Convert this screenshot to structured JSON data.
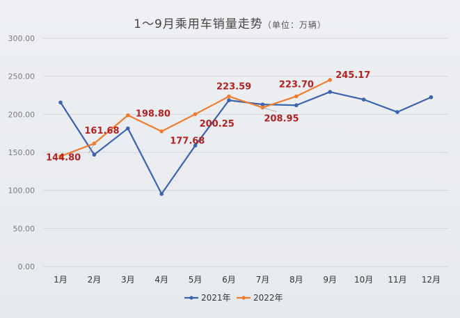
{
  "title": {
    "main": "1～9月乘用车销量走势",
    "unit": "（单位：万辆）"
  },
  "colors": {
    "series_2021": "#3a63b0",
    "series_2022": "#ee7d2e",
    "label": "#b22222",
    "grid": "#d3d6db"
  },
  "chart_data": {
    "type": "line",
    "title": "1～9月乘用车销量走势（单位：万辆）",
    "categories": [
      "1月",
      "2月",
      "3月",
      "4月",
      "5月",
      "6月",
      "7月",
      "8月",
      "9月",
      "10月",
      "11月",
      "12月"
    ],
    "ylim": [
      0,
      300
    ],
    "yticks": [
      "0.00",
      "50.00",
      "100.00",
      "150.00",
      "200.00",
      "250.00",
      "300.00"
    ],
    "grid": true,
    "legend_position": "bottom",
    "series": [
      {
        "name": "2021年",
        "color": "#3a63b0",
        "values": [
          215.6,
          147.0,
          181.5,
          95.5,
          159.0,
          218.5,
          213.0,
          212.0,
          229.5,
          219.5,
          203.0,
          222.5
        ],
        "labels": [
          "",
          "",
          "",
          "",
          "",
          "",
          "",
          "",
          "",
          "",
          "",
          ""
        ]
      },
      {
        "name": "2022年",
        "color": "#ee7d2e",
        "values": [
          144.8,
          161.68,
          198.8,
          177.68,
          200.25,
          223.59,
          208.95,
          223.7,
          245.17,
          null,
          null,
          null
        ],
        "labels": [
          "144.80",
          "161.68",
          "198.80",
          "177.68",
          "200.25",
          "223.59",
          "208.95",
          "223.70",
          "245.17",
          "",
          "",
          ""
        ]
      }
    ]
  }
}
